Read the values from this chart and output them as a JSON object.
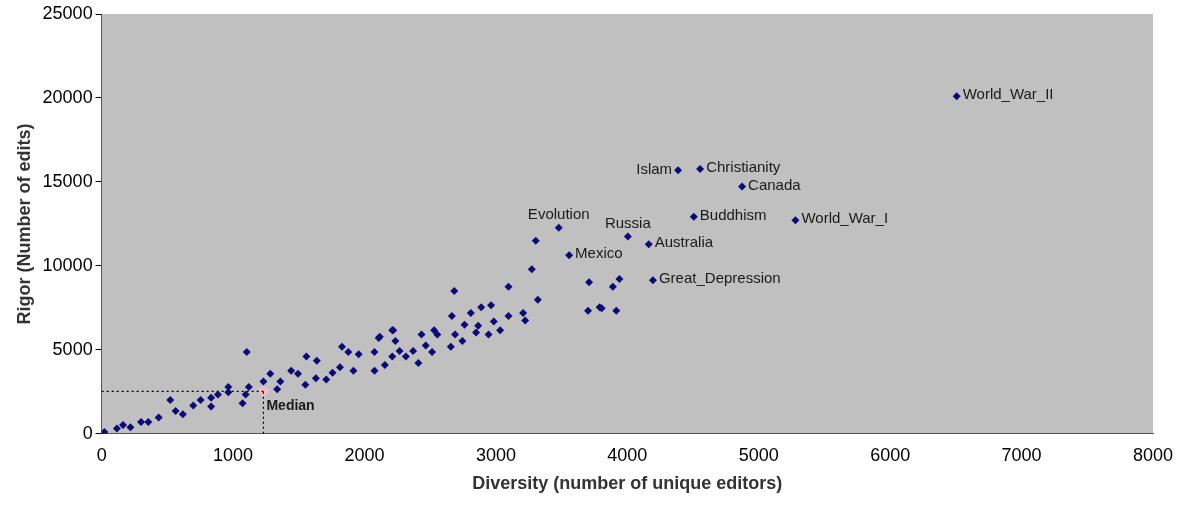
{
  "chart_data": {
    "type": "scatter",
    "xlabel": "Diversity (number of unique editors)",
    "ylabel": "Rigor (Number of edits)",
    "xlim": [
      0,
      8000
    ],
    "xticks": [
      0,
      1000,
      2000,
      3000,
      4000,
      5000,
      6000,
      7000,
      8000
    ],
    "ylim": [
      0,
      25000
    ],
    "yticks": [
      0,
      5000,
      10000,
      15000,
      20000,
      25000
    ],
    "grid": false,
    "legend": false,
    "marker": "diamond",
    "series": [
      {
        "color": "#0a0a78",
        "x": [
          20,
          116,
          163,
          219,
          300,
          355,
          434,
          563,
          618,
          697,
          753,
          833,
          833,
          885,
          964,
          964,
          1072,
          1096,
          1104,
          1120,
          1231,
          1283,
          1335,
          1360,
          1442,
          1494,
          1550,
          1558,
          1630,
          1637,
          1709,
          1757,
          1813,
          1829,
          1877,
          1916,
          1956,
          2076,
          2076,
          2108,
          2116,
          2155,
          2211,
          2211,
          2219,
          2235,
          2267,
          2315,
          2370,
          2410,
          2434,
          2466,
          2514,
          2530,
          2554,
          2657,
          2665,
          2689,
          2683,
          2745,
          2761,
          2809,
          2849,
          2865,
          2888,
          2944,
          2963,
          2984,
          3032,
          3096,
          3096,
          3207,
          3223,
          3273,
          3303,
          3319,
          3701,
          3709,
          3789,
          3805,
          3890,
          3916,
          3940,
          522,
          6506,
          4386,
          4554,
          4873,
          4506,
          5279,
          3478,
          4004,
          3557,
          4163,
          4195
        ],
        "values": [
          100,
          320,
          520,
          390,
          710,
          710,
          970,
          1360,
          1170,
          1690,
          2010,
          2140,
          1620,
          2340,
          2470,
          2790,
          1820,
          2340,
          4870,
          2790,
          3120,
          3570,
          2660,
          3120,
          3760,
          3570,
          2920,
          4610,
          3310,
          4350,
          3240,
          3630,
          3960,
          5190,
          4870,
          3760,
          4740,
          3760,
          4870,
          5710,
          5780,
          4090,
          6170,
          4610,
          6170,
          5520,
          4930,
          4610,
          4930,
          4220,
          5910,
          5260,
          4870,
          6170,
          5910,
          5190,
          7010,
          5910,
          8500,
          5520,
          6490,
          7200,
          6040,
          6430,
          7530,
          5910,
          7660,
          6690,
          6170,
          8760,
          7010,
          7200,
          6750,
          9800,
          11490,
          7980,
          7330,
          9020,
          7530,
          7470,
          8760,
          7330,
          9220,
          2010,
          20100,
          15700,
          15770,
          14730,
          12920,
          12720,
          12270,
          11750,
          10640,
          11290,
          9150
        ]
      },
      {
        "type": "line",
        "color": "#000000",
        "line_style": "dotted",
        "marker": "none",
        "x": [
          0,
          1231
        ],
        "values": [
          2530,
          2530
        ]
      },
      {
        "type": "line",
        "color": "#000000",
        "line_style": "dotted",
        "marker": "none",
        "x": [
          1231,
          1231
        ],
        "values": [
          0,
          2530
        ]
      },
      {
        "name": "Median",
        "color": "#f4b8c8",
        "marker": "circle",
        "x": [
          1231
        ],
        "values": [
          2530
        ]
      }
    ],
    "annotations": [
      {
        "text": "World_War_II",
        "x": 6506,
        "y": 20100
      },
      {
        "text": "Islam",
        "x": 4386,
        "y": 15700
      },
      {
        "text": "Christianity",
        "x": 4554,
        "y": 15770
      },
      {
        "text": "Canada",
        "x": 4873,
        "y": 14730
      },
      {
        "text": "Buddhism",
        "x": 4506,
        "y": 12920
      },
      {
        "text": "World_War_I",
        "x": 5279,
        "y": 12720
      },
      {
        "text": "Evolution",
        "x": 3478,
        "y": 12270
      },
      {
        "text": "Russia",
        "x": 4004,
        "y": 11750
      },
      {
        "text": "Mexico",
        "x": 3557,
        "y": 10640
      },
      {
        "text": "Australia",
        "x": 4163,
        "y": 11290
      },
      {
        "text": "Great_Depression",
        "x": 4195,
        "y": 9150
      }
    ]
  }
}
